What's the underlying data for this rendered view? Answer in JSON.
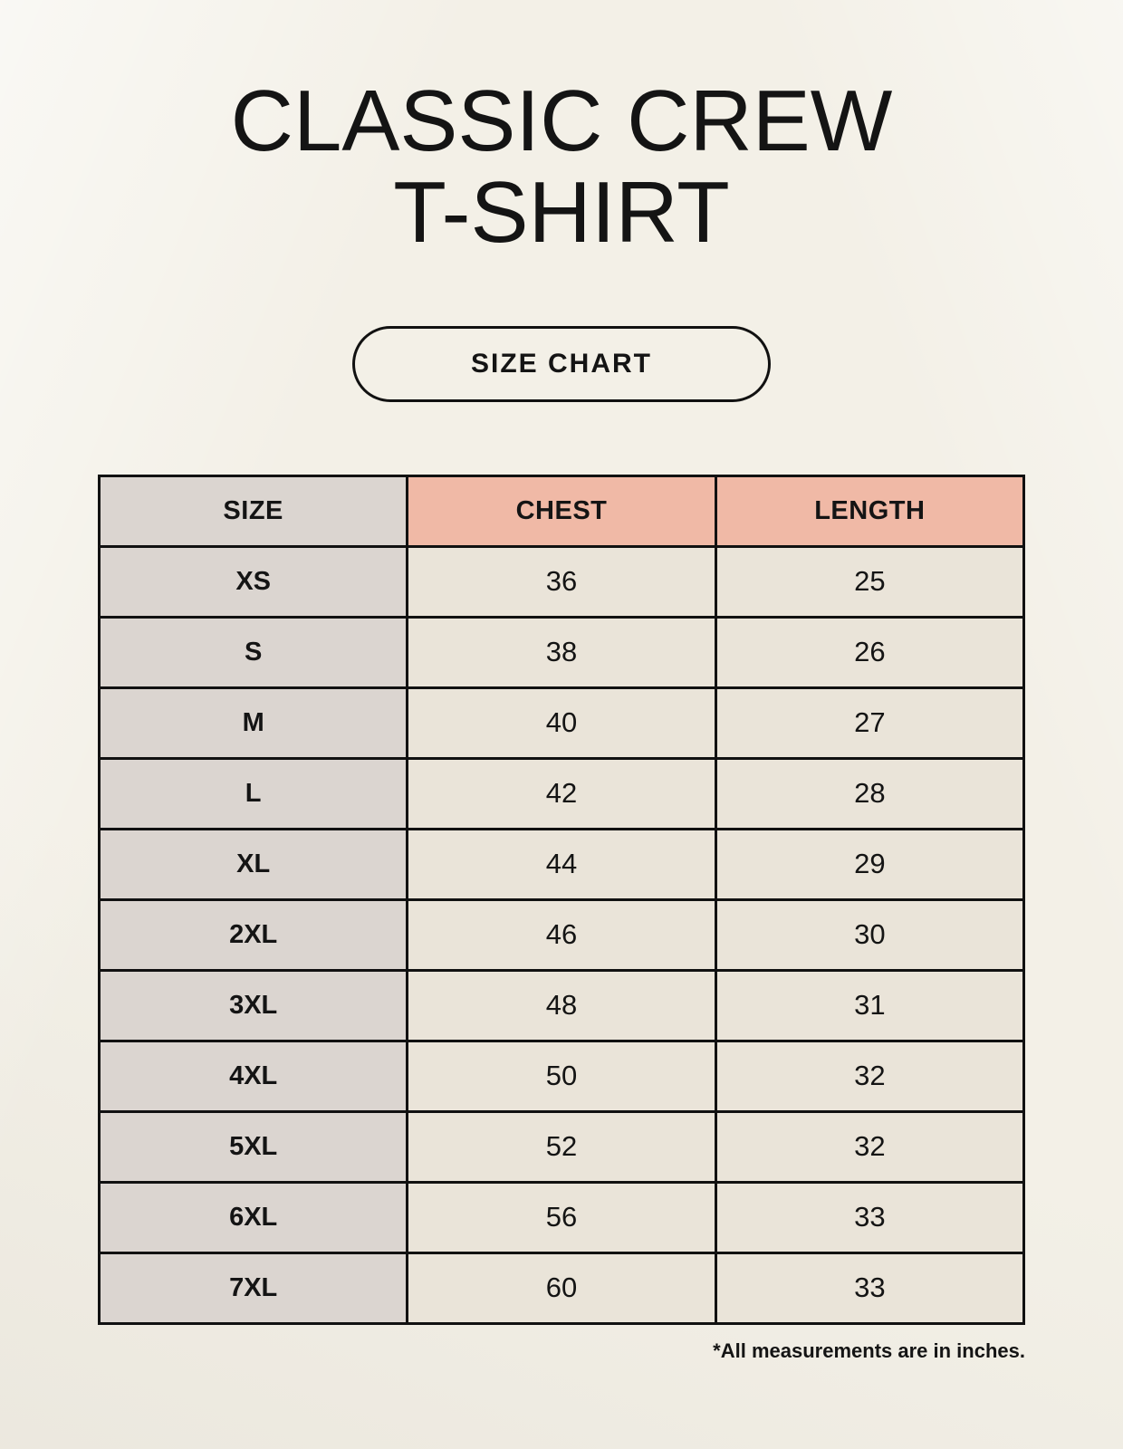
{
  "header": {
    "title_line1": "CLASSIC CREW",
    "title_line2": "T-SHIRT",
    "size_chart_label": "SIZE CHART"
  },
  "chart_data": {
    "type": "table",
    "title": "CLASSIC CREW T-SHIRT",
    "columns": [
      "SIZE",
      "CHEST",
      "LENGTH"
    ],
    "rows": [
      [
        "XS",
        "36",
        "25"
      ],
      [
        "S",
        "38",
        "26"
      ],
      [
        "M",
        "40",
        "27"
      ],
      [
        "L",
        "42",
        "28"
      ],
      [
        "XL",
        "44",
        "29"
      ],
      [
        "2XL",
        "46",
        "30"
      ],
      [
        "3XL",
        "48",
        "31"
      ],
      [
        "4XL",
        "50",
        "32"
      ],
      [
        "5XL",
        "52",
        "32"
      ],
      [
        "6XL",
        "56",
        "33"
      ],
      [
        "7XL",
        "60",
        "33"
      ]
    ],
    "units": "inches"
  },
  "footnote": "*All measurements are in inches.",
  "colors": {
    "bg": "#f3f0e7",
    "accent": "#f0b9a6",
    "size_col": "#dbd5d0",
    "cell": "#eae4d9",
    "border": "#111111",
    "text": "#141414"
  }
}
